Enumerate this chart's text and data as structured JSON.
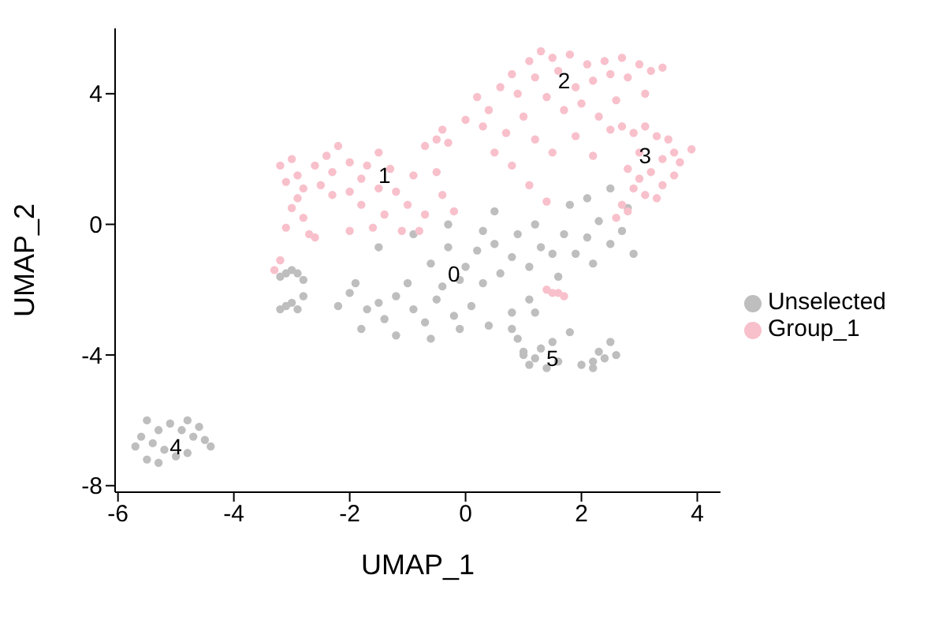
{
  "chart_data": {
    "type": "scatter",
    "xlabel": "UMAP_1",
    "ylabel": "UMAP_2",
    "xlim": [
      -6.05,
      4.4
    ],
    "ylim": [
      -8.2,
      6.0
    ],
    "xticks": [
      -6,
      -4,
      -2,
      0,
      2,
      4
    ],
    "yticks": [
      -8,
      -4,
      0,
      4
    ],
    "grid": false,
    "legend": "right",
    "marker": "circle",
    "annotations": [
      {
        "text": "0",
        "x": -0.2,
        "y": -1.5
      },
      {
        "text": "1",
        "x": -1.4,
        "y": 1.5
      },
      {
        "text": "2",
        "x": 1.7,
        "y": 4.4
      },
      {
        "text": "3",
        "x": 3.1,
        "y": 2.1
      },
      {
        "text": "4",
        "x": -5.0,
        "y": -6.8
      },
      {
        "text": "5",
        "x": 1.5,
        "y": -4.1
      }
    ],
    "series": [
      {
        "name": "Unselected",
        "color": "#bebebe",
        "x": [
          -1.5,
          -2.0,
          -1.9,
          -1.7,
          -1.5,
          -1.4,
          -1.2,
          -1.0,
          -0.9,
          -0.7,
          -0.5,
          -0.4,
          -0.6,
          -0.9,
          -0.3,
          -0.2,
          -0.1,
          0.1,
          0.0,
          0.2,
          0.3,
          0.5,
          0.6,
          0.8,
          0.9,
          1.1,
          1.3,
          1.2,
          1.5,
          1.7,
          1.6,
          1.9,
          2.1,
          2.3,
          2.5,
          2.2,
          2.7,
          2.8,
          2.9,
          -2.2,
          -1.8,
          -1.2,
          -0.6,
          0.8,
          2.1,
          2.5,
          1.8,
          0.4,
          -0.3,
          0.5,
          -3.1,
          -3.0,
          -2.9,
          -2.8,
          -3.2,
          -3.1,
          -3.0,
          -2.9,
          -3.2,
          -2.8,
          0.9,
          1.0,
          1.2,
          1.3,
          1.1,
          1.4,
          1.6,
          1.5,
          0.8,
          1.8,
          2.0,
          2.2,
          2.4,
          2.6,
          2.3,
          2.5,
          2.2,
          1.0,
          1.2,
          1.1,
          0.3,
          -5.5,
          -5.3,
          -5.6,
          -5.4,
          -5.2,
          -5.5,
          -5.3,
          -5.0,
          -4.8,
          -4.7,
          -4.5,
          -4.6,
          -4.8,
          -4.9,
          -5.1,
          -4.4,
          -5.7,
          -0.1
        ],
        "values": [
          -0.7,
          -2.1,
          -1.8,
          -2.6,
          -2.4,
          -2.9,
          -2.2,
          -1.8,
          -2.6,
          -3.0,
          -2.3,
          -1.9,
          -1.2,
          -0.3,
          -0.7,
          -2.8,
          -3.2,
          -2.5,
          -1.3,
          -0.8,
          -0.2,
          -0.6,
          -1.5,
          -1.0,
          -0.3,
          -1.3,
          -0.7,
          0.0,
          -0.9,
          -0.3,
          -1.6,
          -0.9,
          -0.4,
          0.1,
          -0.6,
          -1.2,
          -0.2,
          0.5,
          -0.9,
          -2.5,
          -3.2,
          -3.4,
          -3.5,
          -2.7,
          0.8,
          1.1,
          0.6,
          -3.1,
          0.0,
          0.4,
          -1.5,
          -1.4,
          -1.5,
          -1.7,
          -1.6,
          -2.5,
          -2.4,
          -2.6,
          -2.6,
          -2.2,
          -3.5,
          -3.9,
          -4.1,
          -3.8,
          -4.3,
          -4.4,
          -4.2,
          -3.6,
          -3.2,
          -3.3,
          -4.3,
          -4.2,
          -4.1,
          -4.0,
          -3.9,
          -3.6,
          -4.4,
          -4.0,
          -2.7,
          -2.3,
          -1.8,
          -6.0,
          -6.3,
          -6.5,
          -6.7,
          -6.9,
          -7.2,
          -7.3,
          -7.1,
          -7.0,
          -6.5,
          -6.6,
          -6.2,
          -6.0,
          -6.3,
          -6.1,
          -6.8,
          -6.8,
          -1.7
        ]
      },
      {
        "name": "Group_1",
        "color": "#f8c0cb",
        "x": [
          -3.2,
          -3.0,
          -2.9,
          -3.1,
          -2.8,
          -2.9,
          -3.0,
          -2.8,
          -3.1,
          -2.7,
          -2.6,
          -2.4,
          -2.3,
          -2.2,
          -2.0,
          -2.5,
          -2.3,
          -2.0,
          -1.8,
          -1.7,
          -1.5,
          -1.3,
          -1.5,
          -1.2,
          -1.0,
          -1.4,
          -1.6,
          -2.0,
          -1.1,
          -0.8,
          -0.7,
          -0.9,
          -0.7,
          -0.5,
          -0.3,
          -0.5,
          -0.4,
          -0.2,
          -2.6,
          -1.8,
          -3.3,
          -3.2,
          0.2,
          0.4,
          0.6,
          0.8,
          0.9,
          1.1,
          1.2,
          1.3,
          1.5,
          1.6,
          1.8,
          1.9,
          2.1,
          2.2,
          2.4,
          2.5,
          2.7,
          2.8,
          3.0,
          3.2,
          3.4,
          3.1,
          2.6,
          2.3,
          2.0,
          1.7,
          1.4,
          1.0,
          0.7,
          0.5,
          0.8,
          1.2,
          1.5,
          1.9,
          2.2,
          2.5,
          1.1,
          1.4,
          0.3,
          0.0,
          -0.4,
          2.7,
          2.9,
          3.1,
          3.3,
          3.5,
          3.6,
          3.7,
          3.9,
          3.4,
          3.2,
          3.0,
          2.8,
          2.9,
          3.1,
          3.4,
          3.6,
          2.7,
          2.6,
          2.8,
          3.3,
          3.0,
          1.4,
          1.5,
          1.6,
          1.7
        ],
        "values": [
          1.8,
          2.0,
          1.5,
          1.3,
          1.1,
          0.8,
          0.5,
          0.2,
          -0.1,
          -0.3,
          1.8,
          2.1,
          1.6,
          2.4,
          1.9,
          1.2,
          0.9,
          1.0,
          1.4,
          1.8,
          2.2,
          1.7,
          1.1,
          1.0,
          0.6,
          0.3,
          -0.1,
          -0.2,
          -0.2,
          -0.2,
          0.3,
          1.5,
          2.4,
          2.6,
          2.5,
          1.6,
          0.9,
          0.4,
          -0.4,
          0.6,
          -1.4,
          -1.1,
          3.9,
          3.5,
          4.2,
          4.6,
          4.0,
          5.0,
          4.5,
          5.3,
          5.1,
          4.7,
          5.2,
          4.2,
          4.9,
          4.4,
          5.0,
          4.6,
          5.1,
          4.5,
          4.9,
          4.7,
          4.8,
          4.0,
          3.8,
          3.3,
          3.7,
          3.5,
          3.9,
          3.3,
          2.8,
          2.2,
          1.8,
          2.6,
          2.2,
          2.7,
          2.1,
          2.9,
          1.2,
          0.7,
          3.0,
          3.2,
          2.9,
          3.0,
          2.8,
          3.0,
          2.7,
          2.6,
          2.2,
          1.9,
          2.3,
          2.0,
          1.6,
          1.4,
          1.7,
          1.1,
          0.9,
          1.2,
          1.5,
          0.6,
          0.2,
          0.4,
          0.8,
          2.2,
          -2.0,
          -2.1,
          -2.1,
          -2.2
        ]
      }
    ]
  }
}
